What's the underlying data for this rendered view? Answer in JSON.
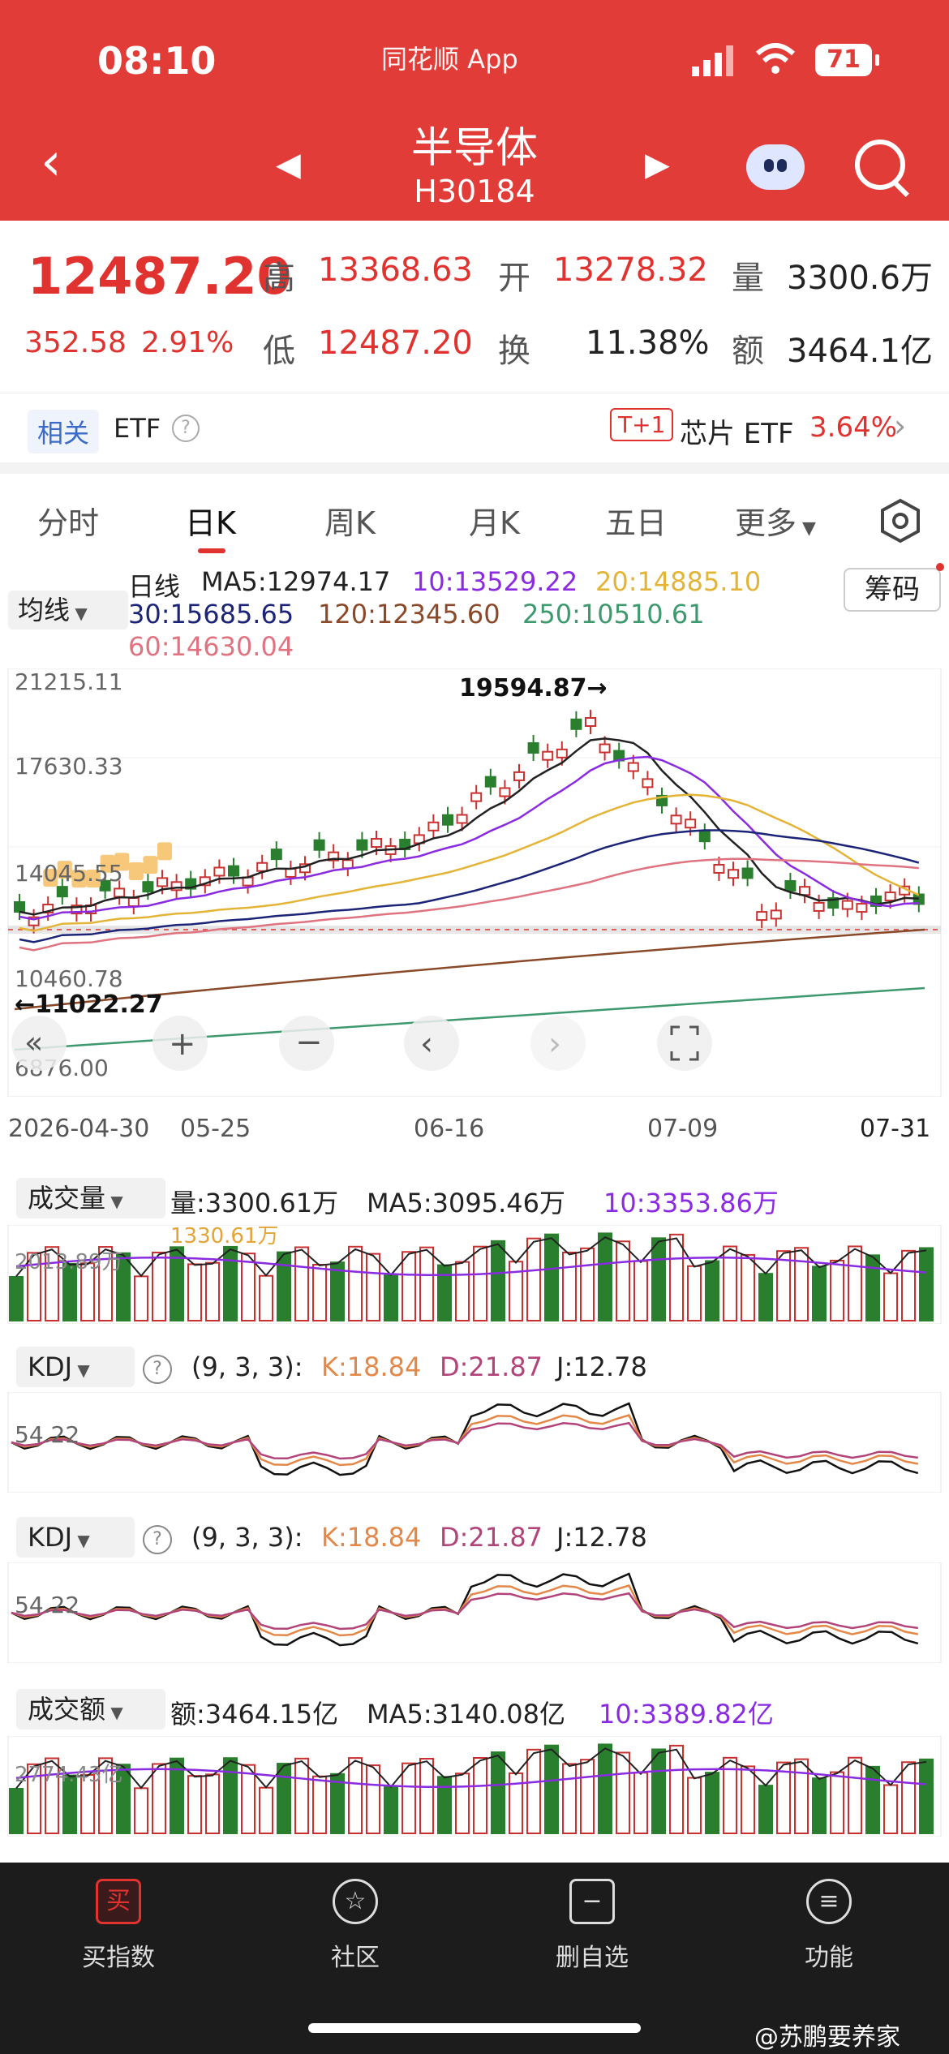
{
  "status": {
    "time": "08:10",
    "app": "同花顺 App",
    "battery": "71"
  },
  "header": {
    "title": "半导体",
    "code": "H30184"
  },
  "quote": {
    "price": "12487.20",
    "change": "352.58",
    "change_pct": "2.91%",
    "high_label": "高",
    "high": "13368.63",
    "open_label": "开",
    "open": "13278.32",
    "volume_label": "量",
    "volume": "3300.6万",
    "low_label": "低",
    "low": "12487.20",
    "turnover_label": "换",
    "turnover": "11.38%",
    "amount_label": "额",
    "amount": "3464.1亿"
  },
  "related": {
    "tag": "相关",
    "etf": "ETF",
    "t1": "T+1",
    "chip_etf": "芯片 ETF",
    "chip_pct": "3.64%"
  },
  "tabs": [
    "分时",
    "日K",
    "周K",
    "月K",
    "五日",
    "更多"
  ],
  "ma": {
    "toggle": "均线",
    "period": "日线",
    "ma5": "MA5:12974.17",
    "ma10": "10:13529.22",
    "ma20": "20:14885.10",
    "ma30": "30:15685.65",
    "ma120": "120:12345.60",
    "ma250": "250:10510.61",
    "ma60": "60:14630.04",
    "chips": "筹码"
  },
  "kline": {
    "y_top": "21215.11",
    "y_mid1": "17630.33",
    "y_mid2": "14045.55",
    "y_mid3": "10460.78",
    "y_bot": "6876.00",
    "max_label": "19594.87→",
    "min_label": "←11022.27",
    "dates": [
      "2026-04-30",
      "05-25",
      "06-16",
      "07-09",
      "07-31"
    ]
  },
  "volume_panel": {
    "title": "成交量",
    "vol": "量:3300.61万",
    "ma5": "MA5:3095.46万",
    "ma10": "10:3353.86万",
    "axis": "2013.89万",
    "axis2": "1330.61万"
  },
  "kdj1": {
    "title": "KDJ",
    "params": "(9, 3, 3):",
    "k": "K:18.84",
    "d": "D:21.87",
    "j": "J:12.78",
    "axis": "54.22"
  },
  "kdj2": {
    "title": "KDJ",
    "params": "(9, 3, 3):",
    "k": "K:18.84",
    "d": "D:21.87",
    "j": "J:12.78",
    "axis": "54.22"
  },
  "amount_panel": {
    "title": "成交额",
    "amt": "额:3464.15亿",
    "ma5": "MA5:3140.08亿",
    "ma10": "10:3389.82亿",
    "axis": "2774.43亿"
  },
  "bottombar": [
    {
      "icon": "买",
      "label": "买指数"
    },
    {
      "icon": "☆",
      "label": "社区"
    },
    {
      "icon": "−",
      "label": "删自选"
    },
    {
      "icon": "≡",
      "label": "功能"
    }
  ],
  "watermark": "@苏鹏要养家",
  "colors": {
    "header": "#e23c39",
    "up": "#e0322f",
    "down": "#2a7f2e"
  }
}
